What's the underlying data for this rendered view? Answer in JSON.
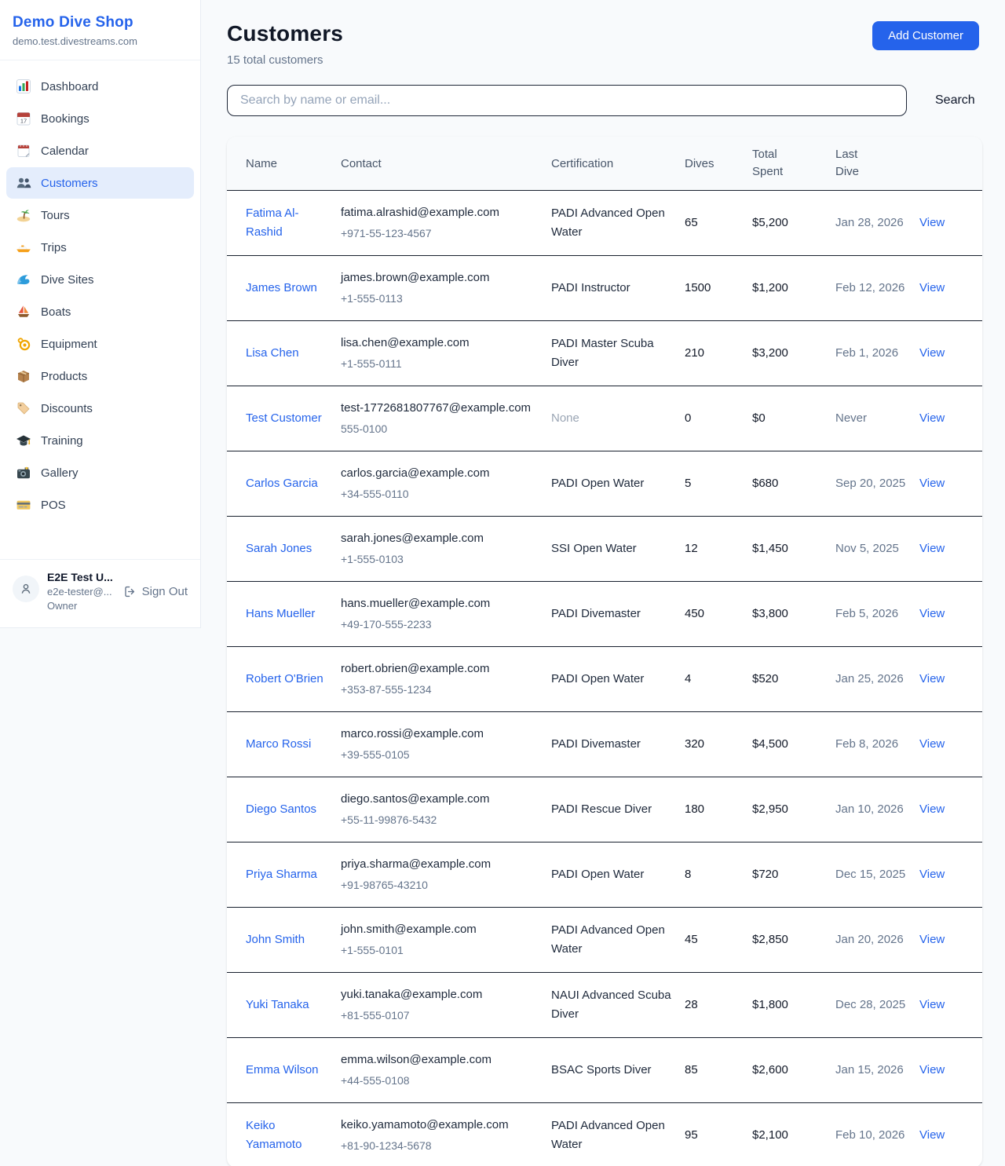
{
  "colors": {
    "accent": "#2563eb",
    "active_item_bg": "#e4edfc",
    "row_border": "#18202e"
  },
  "sidebar": {
    "title": "Demo Dive Shop",
    "subdomain": "demo.test.divestreams.com",
    "items": [
      {
        "label": "Dashboard",
        "icon": "bar-chart-icon",
        "active": false
      },
      {
        "label": "Bookings",
        "icon": "calendar-date-icon",
        "active": false
      },
      {
        "label": "Calendar",
        "icon": "calendar-pad-icon",
        "active": false
      },
      {
        "label": "Customers",
        "icon": "people-icon",
        "active": true
      },
      {
        "label": "Tours",
        "icon": "island-icon",
        "active": false
      },
      {
        "label": "Trips",
        "icon": "speedboat-icon",
        "active": false
      },
      {
        "label": "Dive Sites",
        "icon": "wave-icon",
        "active": false
      },
      {
        "label": "Boats",
        "icon": "sailboat-icon",
        "active": false
      },
      {
        "label": "Equipment",
        "icon": "dive-mask-icon",
        "active": false
      },
      {
        "label": "Products",
        "icon": "package-icon",
        "active": false
      },
      {
        "label": "Discounts",
        "icon": "tag-icon",
        "active": false
      },
      {
        "label": "Training",
        "icon": "grad-cap-icon",
        "active": false
      },
      {
        "label": "Gallery",
        "icon": "camera-icon",
        "active": false
      },
      {
        "label": "POS",
        "icon": "credit-card-icon",
        "active": false
      }
    ],
    "user": {
      "name": "E2E Test U...",
      "email": "e2e-tester@...",
      "role": "Owner",
      "sign_out_label": "Sign Out"
    }
  },
  "header": {
    "title": "Customers",
    "subtitle": "15 total customers",
    "add_button_label": "Add Customer"
  },
  "search": {
    "placeholder": "Search by name or email...",
    "button_label": "Search"
  },
  "table": {
    "columns": [
      "Name",
      "Contact",
      "Certification",
      "Dives",
      "Total Spent",
      "Last Dive",
      ""
    ],
    "rows": [
      {
        "name": "Fatima Al-Rashid",
        "email": "fatima.alrashid@example.com",
        "phone": "+971-55-123-4567",
        "certification": "PADI Advanced Open Water",
        "dives": "65",
        "total_spent": "$5,200",
        "last_dive": "Jan 28, 2026",
        "action": "View"
      },
      {
        "name": "James Brown",
        "email": "james.brown@example.com",
        "phone": "+1-555-0113",
        "certification": "PADI Instructor",
        "dives": "1500",
        "total_spent": "$1,200",
        "last_dive": "Feb 12, 2026",
        "action": "View"
      },
      {
        "name": "Lisa Chen",
        "email": "lisa.chen@example.com",
        "phone": "+1-555-0111",
        "certification": "PADI Master Scuba Diver",
        "dives": "210",
        "total_spent": "$3,200",
        "last_dive": "Feb 1, 2026",
        "action": "View"
      },
      {
        "name": "Test Customer",
        "email": "test-1772681807767@example.com",
        "phone": "555-0100",
        "certification": "None",
        "dives": "0",
        "total_spent": "$0",
        "last_dive": "Never",
        "action": "View"
      },
      {
        "name": "Carlos Garcia",
        "email": "carlos.garcia@example.com",
        "phone": "+34-555-0110",
        "certification": "PADI Open Water",
        "dives": "5",
        "total_spent": "$680",
        "last_dive": "Sep 20, 2025",
        "action": "View"
      },
      {
        "name": "Sarah Jones",
        "email": "sarah.jones@example.com",
        "phone": "+1-555-0103",
        "certification": "SSI Open Water",
        "dives": "12",
        "total_spent": "$1,450",
        "last_dive": "Nov 5, 2025",
        "action": "View"
      },
      {
        "name": "Hans Mueller",
        "email": "hans.mueller@example.com",
        "phone": "+49-170-555-2233",
        "certification": "PADI Divemaster",
        "dives": "450",
        "total_spent": "$3,800",
        "last_dive": "Feb 5, 2026",
        "action": "View"
      },
      {
        "name": "Robert O'Brien",
        "email": "robert.obrien@example.com",
        "phone": "+353-87-555-1234",
        "certification": "PADI Open Water",
        "dives": "4",
        "total_spent": "$520",
        "last_dive": "Jan 25, 2026",
        "action": "View"
      },
      {
        "name": "Marco Rossi",
        "email": "marco.rossi@example.com",
        "phone": "+39-555-0105",
        "certification": "PADI Divemaster",
        "dives": "320",
        "total_spent": "$4,500",
        "last_dive": "Feb 8, 2026",
        "action": "View"
      },
      {
        "name": "Diego Santos",
        "email": "diego.santos@example.com",
        "phone": "+55-11-99876-5432",
        "certification": "PADI Rescue Diver",
        "dives": "180",
        "total_spent": "$2,950",
        "last_dive": "Jan 10, 2026",
        "action": "View"
      },
      {
        "name": "Priya Sharma",
        "email": "priya.sharma@example.com",
        "phone": "+91-98765-43210",
        "certification": "PADI Open Water",
        "dives": "8",
        "total_spent": "$720",
        "last_dive": "Dec 15, 2025",
        "action": "View"
      },
      {
        "name": "John Smith",
        "email": "john.smith@example.com",
        "phone": "+1-555-0101",
        "certification": "PADI Advanced Open Water",
        "dives": "45",
        "total_spent": "$2,850",
        "last_dive": "Jan 20, 2026",
        "action": "View"
      },
      {
        "name": "Yuki Tanaka",
        "email": "yuki.tanaka@example.com",
        "phone": "+81-555-0107",
        "certification": "NAUI Advanced Scuba Diver",
        "dives": "28",
        "total_spent": "$1,800",
        "last_dive": "Dec 28, 2025",
        "action": "View"
      },
      {
        "name": "Emma Wilson",
        "email": "emma.wilson@example.com",
        "phone": "+44-555-0108",
        "certification": "BSAC Sports Diver",
        "dives": "85",
        "total_spent": "$2,600",
        "last_dive": "Jan 15, 2026",
        "action": "View"
      },
      {
        "name": "Keiko Yamamoto",
        "email": "keiko.yamamoto@example.com",
        "phone": "+81-90-1234-5678",
        "certification": "PADI Advanced Open Water",
        "dives": "95",
        "total_spent": "$2,100",
        "last_dive": "Feb 10, 2026",
        "action": "View"
      }
    ]
  }
}
